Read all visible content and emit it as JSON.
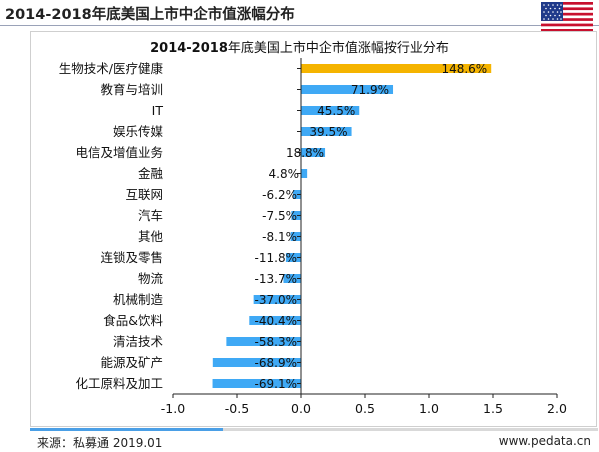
{
  "header": {
    "title": "2014-2018年底美国上市中企市值涨幅分布"
  },
  "flag_icon": "us-flag-icon",
  "chart_data": {
    "type": "bar",
    "orientation": "horizontal",
    "title_prefix": "2014-2018",
    "title_rest": "年底美国上市中企市值涨幅按行业分布",
    "categories": [
      "生物技术/医疗健康",
      "教育与培训",
      "IT",
      "娱乐传媒",
      "电信及增值业务",
      "金融",
      "互联网",
      "汽车",
      "其他",
      "连锁及零售",
      "物流",
      "机械制造",
      "食品&饮料",
      "清洁技术",
      "能源及矿产",
      "化工原料及加工"
    ],
    "values": [
      1.486,
      0.719,
      0.455,
      0.395,
      0.188,
      0.048,
      -0.062,
      -0.075,
      -0.081,
      -0.118,
      -0.137,
      -0.37,
      -0.404,
      -0.583,
      -0.689,
      -0.691
    ],
    "data_labels": [
      "148.6%",
      "71.9%",
      "45.5%",
      "39.5%",
      "18.8%",
      "4.8%",
      "-6.2%",
      "-7.5%",
      "-8.1%",
      "-11.8%",
      "-13.7%",
      "-37.0%",
      "-40.4%",
      "-58.3%",
      "-68.9%",
      "-69.1%"
    ],
    "xlim": [
      -1.0,
      2.0
    ],
    "xticks": [
      "-1.0",
      "-0.5",
      "0.0",
      "0.5",
      "1.0",
      "1.5",
      "2.0"
    ],
    "xtick_values": [
      -1.0,
      -0.5,
      0.0,
      0.5,
      1.0,
      1.5,
      2.0
    ],
    "colors": {
      "highlight": "#f5b400",
      "bar": "#3fa9f5"
    },
    "highlight_index": 0,
    "grid": false
  },
  "progress": {
    "fraction": 0.34,
    "color": "#4a9fe6"
  },
  "footer": {
    "source": "来源：私募通 2019.01",
    "site": "www.pedata.cn"
  }
}
